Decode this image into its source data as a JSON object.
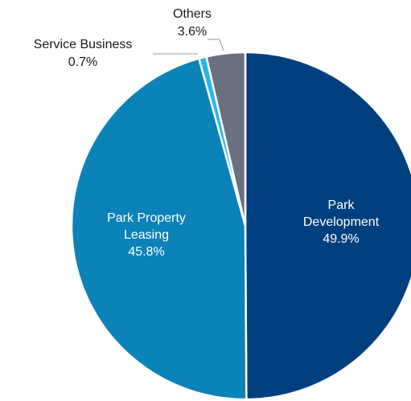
{
  "chart_data": {
    "type": "pie",
    "title": "",
    "slices": [
      {
        "label": "Park Development",
        "label_lines": [
          "Park",
          "Development"
        ],
        "value": 49.9,
        "value_text": "49.9%",
        "color": "#003f7d"
      },
      {
        "label": "Park Property Leasing",
        "label_lines": [
          "Park Property",
          "Leasing"
        ],
        "value": 45.8,
        "value_text": "45.8%",
        "color": "#0b82b8"
      },
      {
        "label": "Service Business",
        "label_lines": [
          "Service Business"
        ],
        "value": 0.7,
        "value_text": "0.7%",
        "color": "#29b6ef"
      },
      {
        "label": "Others",
        "label_lines": [
          "Others"
        ],
        "value": 3.6,
        "value_text": "3.6%",
        "color": "#6b7080"
      }
    ],
    "start_angle_deg": 0,
    "direction": "clockwise",
    "slice_separator_color": "#ffffff",
    "legend": "none"
  }
}
